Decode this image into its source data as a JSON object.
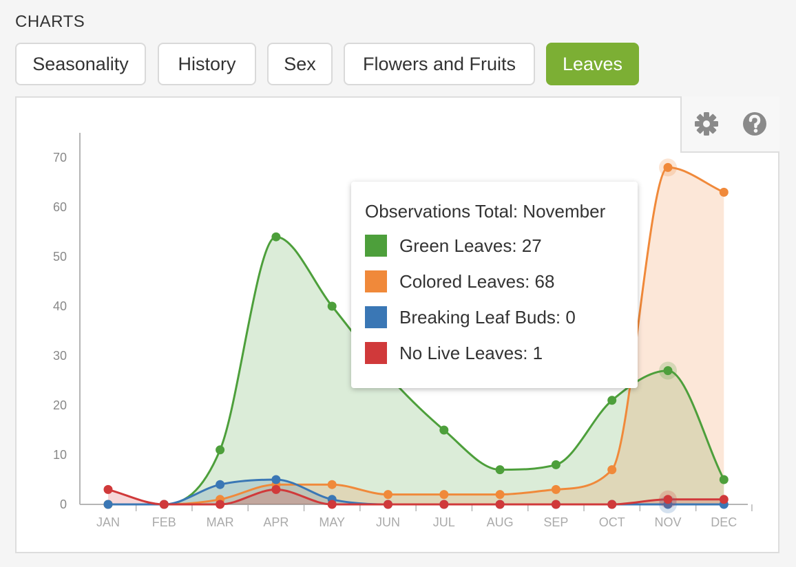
{
  "section_title": "CHARTS",
  "tabs": [
    {
      "label": "Seasonality",
      "active": false
    },
    {
      "label": "History",
      "active": false
    },
    {
      "label": "Sex",
      "active": false
    },
    {
      "label": "Flowers and Fruits",
      "active": false
    },
    {
      "label": "Leaves",
      "active": true
    }
  ],
  "toolbar": {
    "settings_icon": "gear-icon",
    "help_icon": "question-circle-icon"
  },
  "colors": {
    "accent": "#7caf34",
    "green": "#4d9f3b",
    "orange": "#f0893a",
    "blue": "#3a77b5",
    "red": "#d0393a"
  },
  "chart_data": {
    "type": "area",
    "categories": [
      "JAN",
      "FEB",
      "MAR",
      "APR",
      "MAY",
      "JUN",
      "JUL",
      "AUG",
      "SEP",
      "OCT",
      "NOV",
      "DEC"
    ],
    "ylim": [
      0,
      70
    ],
    "yticks": [
      0,
      10,
      20,
      30,
      40,
      50,
      60,
      70
    ],
    "grid": false,
    "series": [
      {
        "name": "Green Leaves",
        "color": "#4d9f3b",
        "values": [
          0,
          0,
          11,
          54,
          40,
          26,
          15,
          7,
          8,
          21,
          27,
          5
        ]
      },
      {
        "name": "Colored Leaves",
        "color": "#f0893a",
        "values": [
          0,
          0,
          1,
          4,
          4,
          2,
          2,
          2,
          3,
          7,
          68,
          63
        ]
      },
      {
        "name": "Breaking Leaf Buds",
        "color": "#3a77b5",
        "values": [
          0,
          0,
          4,
          5,
          1,
          0,
          0,
          0,
          0,
          0,
          0,
          0
        ]
      },
      {
        "name": "No Live Leaves",
        "color": "#d0393a",
        "values": [
          3,
          0,
          0,
          3,
          0,
          0,
          0,
          0,
          0,
          0,
          1,
          1
        ]
      }
    ],
    "tooltip": {
      "title": "Observations Total: November",
      "rows": [
        {
          "label": "Green Leaves: 27",
          "color": "#4d9f3b"
        },
        {
          "label": "Colored Leaves: 68",
          "color": "#f0893a"
        },
        {
          "label": "Breaking Leaf Buds: 0",
          "color": "#3a77b5"
        },
        {
          "label": "No Live Leaves: 1",
          "color": "#d0393a"
        }
      ],
      "highlight_index": 10
    }
  }
}
